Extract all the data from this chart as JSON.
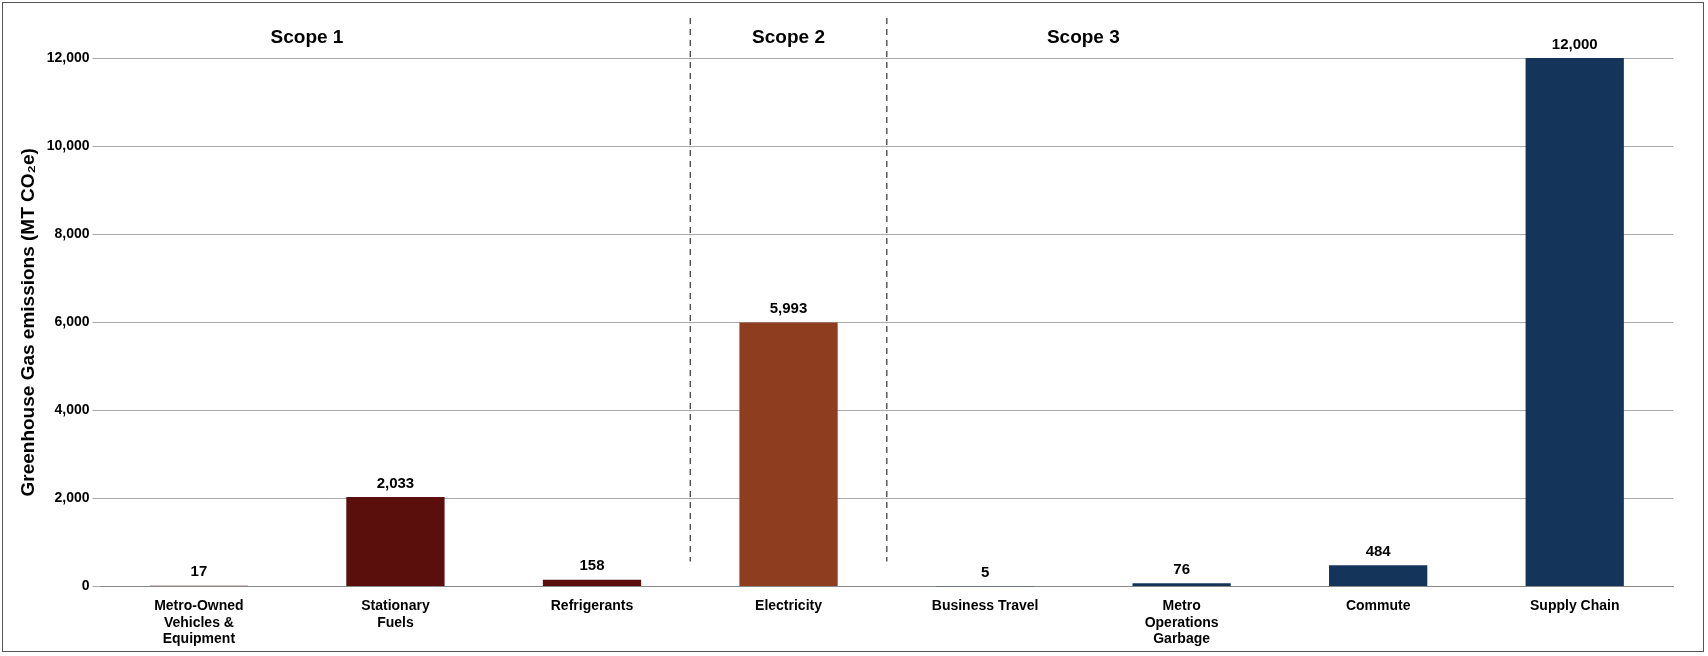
{
  "chart_data": {
    "type": "bar",
    "ylabel": "Greenhouse Gas emissions (MT CO₂e)",
    "categories": [
      "Metro-Owned Vehicles & Equipment",
      "Stationary Fuels",
      "Refrigerants",
      "Electricity",
      "Business Travel",
      "Metro Operations Garbage",
      "Commute",
      "Supply Chain"
    ],
    "values": [
      17,
      2033,
      158,
      5993,
      5,
      76,
      484,
      12000
    ],
    "colors": [
      "#5a0f0d",
      "#5a0f0d",
      "#5a0f0d",
      "#8e3d1f",
      "#153459",
      "#153459",
      "#153459",
      "#153459"
    ],
    "value_labels": [
      "17",
      "2,033",
      "158",
      "5,993",
      "5",
      "76",
      "484",
      "12,000"
    ],
    "ylim": [
      0,
      12000
    ],
    "yticks": [
      {
        "value": 0,
        "label": "0"
      },
      {
        "value": 2000,
        "label": "2,000"
      },
      {
        "value": 4000,
        "label": "4,000"
      },
      {
        "value": 6000,
        "label": "6,000"
      },
      {
        "value": 8000,
        "label": "8,000"
      },
      {
        "value": 10000,
        "label": "10,000"
      },
      {
        "value": 12000,
        "label": "12,000"
      }
    ],
    "grid": "y",
    "legend": false,
    "annotations": [
      "Scope 1",
      "Scope 2",
      "Scope 3"
    ]
  }
}
